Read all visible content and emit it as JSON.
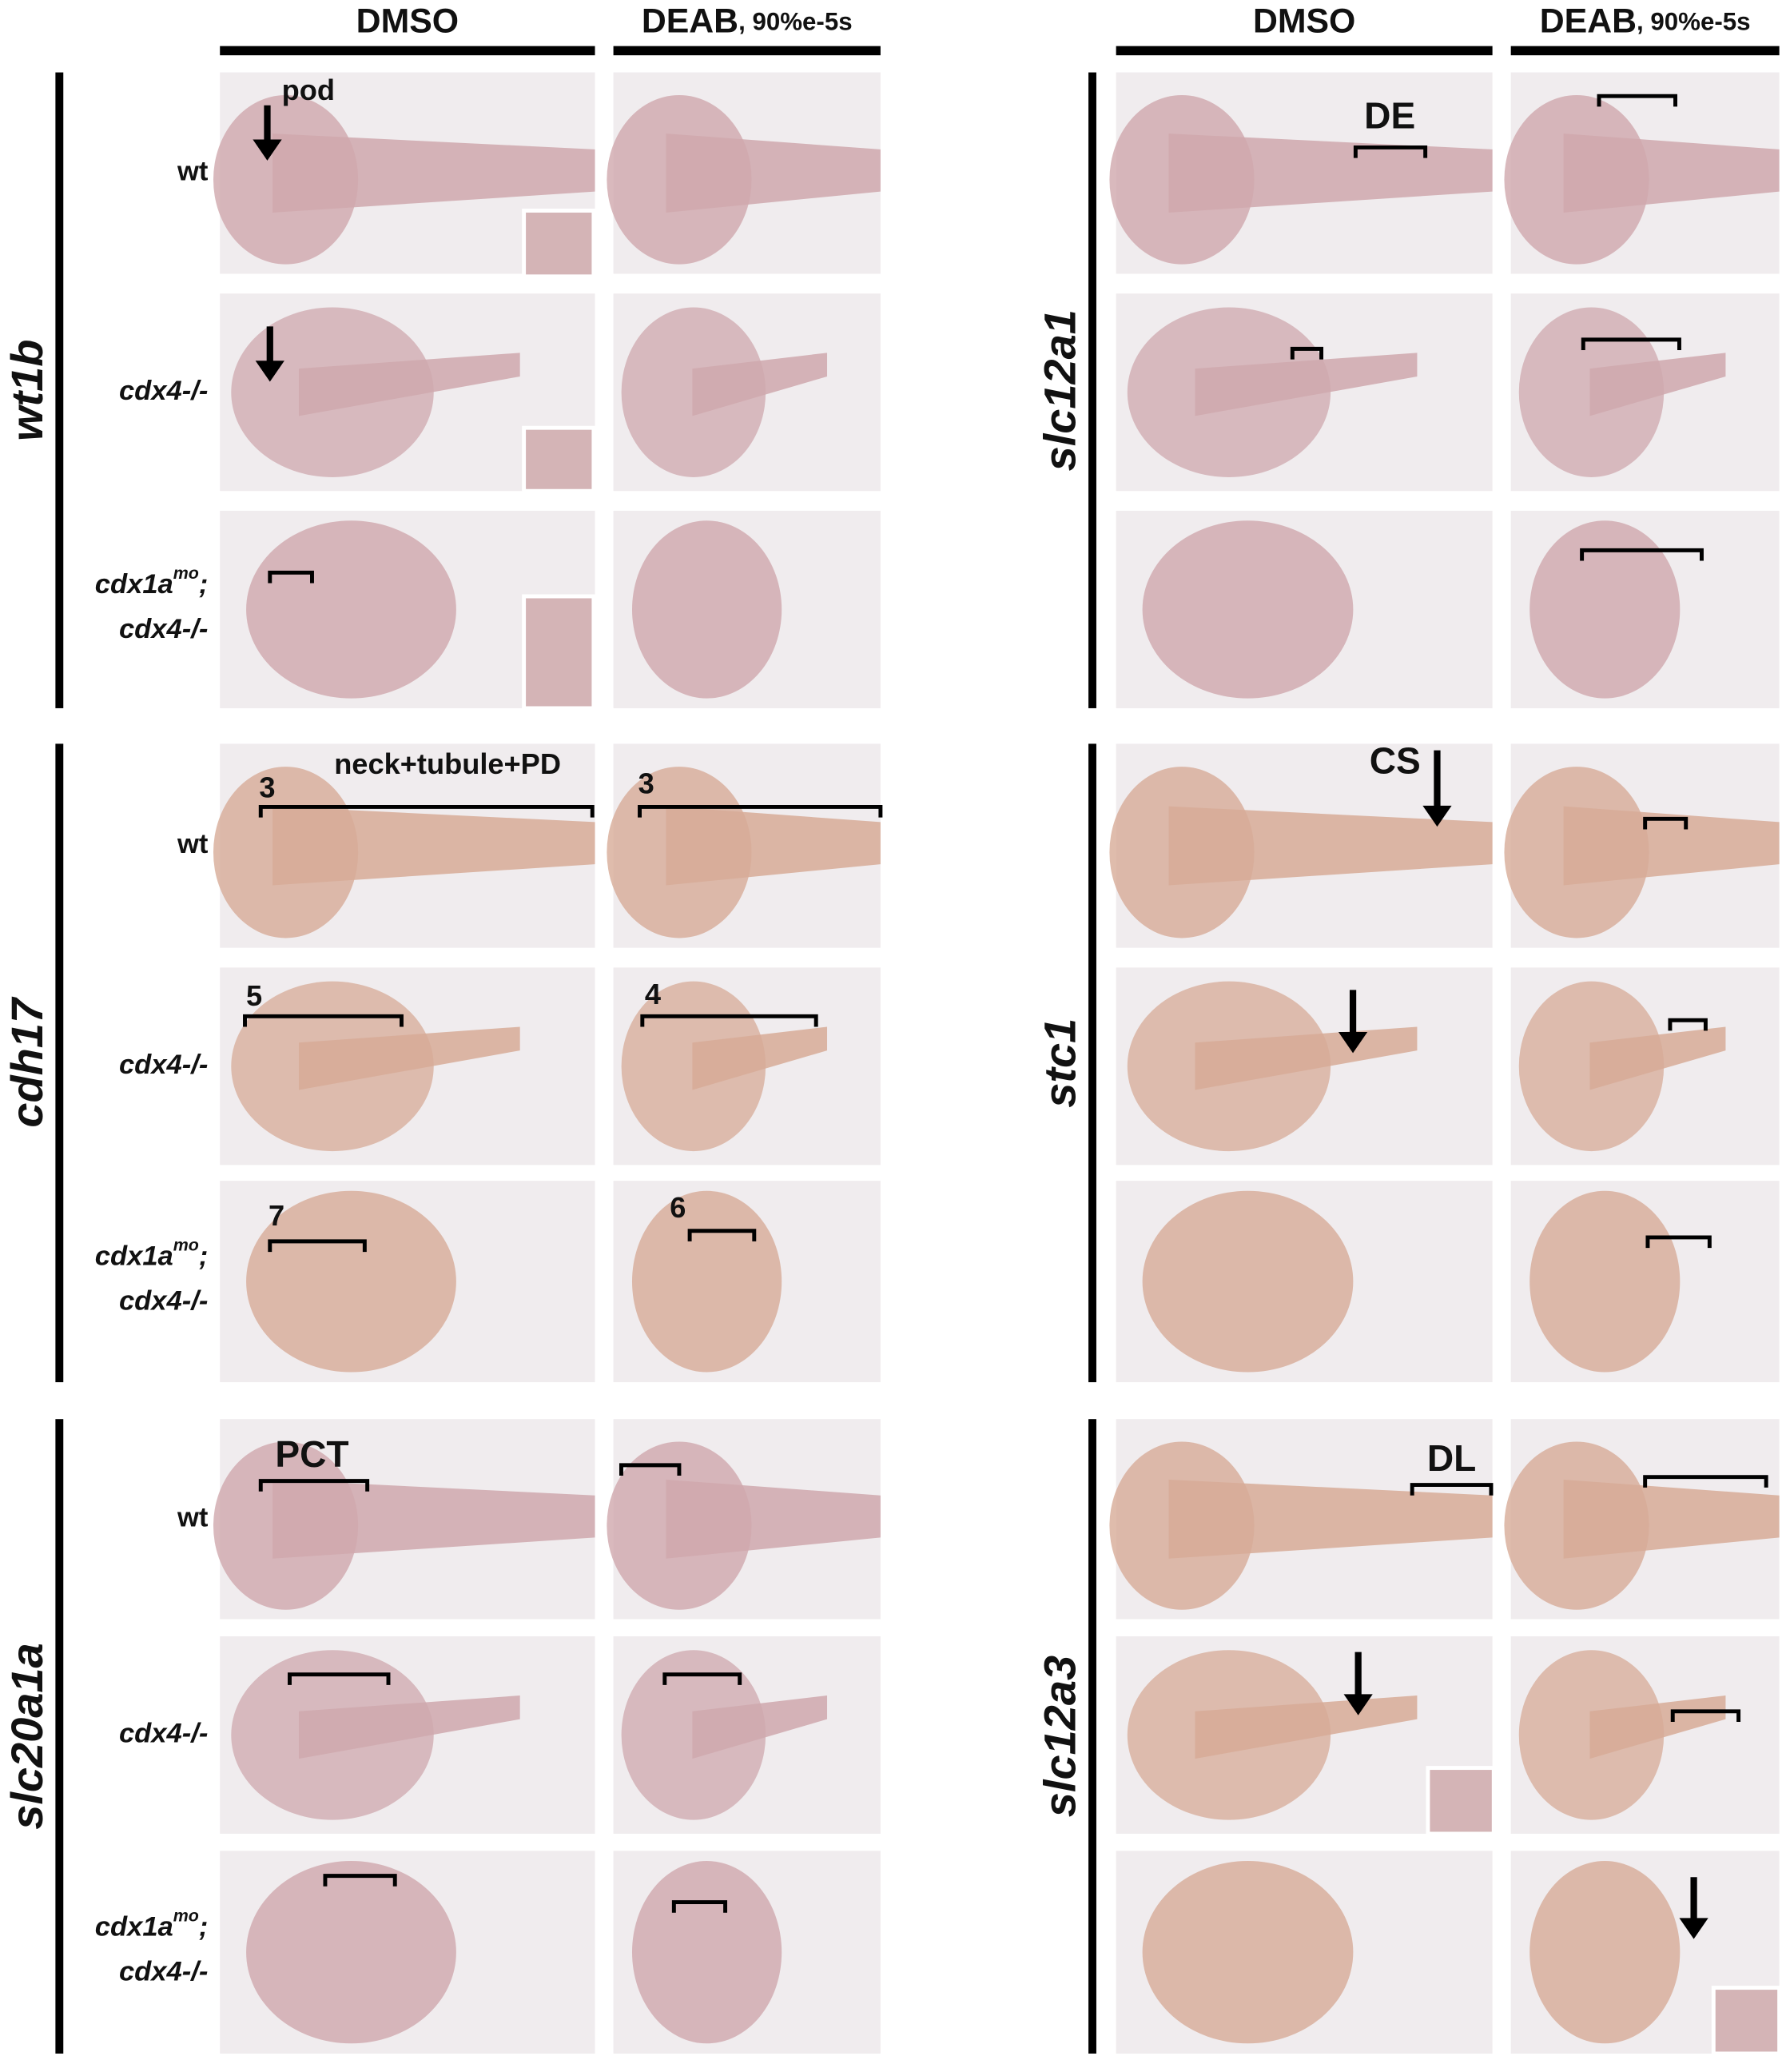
{
  "column_headers": [
    {
      "main": "DMSO"
    },
    {
      "main": "DEAB",
      "sub": ", 90%e-5s"
    },
    {
      "main": "DMSO"
    },
    {
      "main": "DEAB",
      "sub": ", 90%e-5s"
    }
  ],
  "genes": [
    {
      "name": "wt1b",
      "rows": [
        {
          "text": "wt"
        },
        {
          "text": "cdx4-/-"
        },
        {
          "gene": "cdx1a",
          "sup": "mo",
          "suffix": ";",
          "line2": "cdx4-/-"
        }
      ]
    },
    {
      "name": "cdh17",
      "rows": [
        {
          "text": "wt"
        },
        {
          "text": "cdx4-/-"
        },
        {
          "gene": "cdx1a",
          "sup": "mo",
          "suffix": ";",
          "line2": "cdx4-/-"
        }
      ]
    },
    {
      "name": "slc20a1a",
      "rows": [
        {
          "text": "wt"
        },
        {
          "text": "cdx4-/-"
        },
        {
          "gene": "cdx1a",
          "sup": "mo",
          "suffix": ";",
          "line2": "cdx4-/-"
        }
      ]
    },
    {
      "name": "slc12a1"
    },
    {
      "name": "stc1"
    },
    {
      "name": "slc12a3"
    }
  ],
  "annotations": [
    {
      "text": "pod"
    },
    {
      "text": "*"
    },
    {
      "text": "*"
    },
    {
      "text": "neck+tubule+PD"
    },
    {
      "text": "3"
    },
    {
      "text": "3"
    },
    {
      "text": "5"
    },
    {
      "text": "4"
    },
    {
      "text": "7"
    },
    {
      "text": "6"
    },
    {
      "text": "PCT"
    },
    {
      "text": "DE"
    },
    {
      "text": "CS"
    },
    {
      "text": "DL"
    }
  ]
}
